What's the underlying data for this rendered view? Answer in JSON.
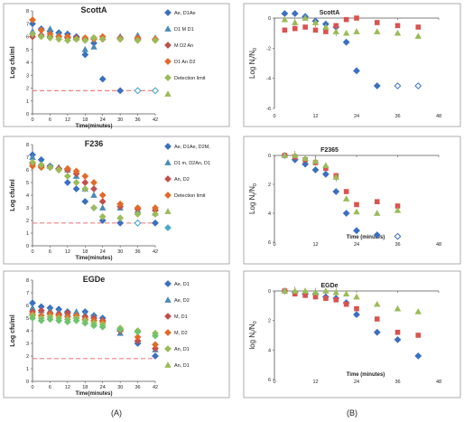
{
  "figure_labels": {
    "a": "(A)",
    "b": "(B)"
  },
  "colors": {
    "s1": "#3b6fbf",
    "s2": "#4a8ab7",
    "s3": "#c0504d",
    "s4": "#e06b2a",
    "s5": "#9bbb59",
    "s6": "#4bacc6",
    "detection": "#f08080"
  },
  "chart_data": [
    {
      "id": "a1",
      "type": "scatter",
      "title": "ScottA",
      "xlabel": "Time(minutes)",
      "ylabel": "Log cfu/ml",
      "xlim": [
        0,
        42
      ],
      "ylim": [
        0,
        8
      ],
      "xticks": [
        0,
        6,
        12,
        18,
        24,
        30,
        36,
        42
      ],
      "yticks": [
        0,
        1,
        2,
        3,
        4,
        5,
        6,
        7,
        8
      ],
      "legend": [
        "Ae, D1Ae",
        "D1 M D1",
        "M D2 An",
        "D1 An D2",
        "Detection limit",
        ""
      ],
      "series": [
        {
          "shape": "diamond",
          "color": "#3b6fbf",
          "x": [
            0,
            3,
            6,
            9,
            12,
            15,
            18,
            21,
            24,
            30,
            36,
            42
          ],
          "y": [
            7.0,
            6.6,
            6.4,
            6.3,
            6.2,
            6.0,
            4.6,
            5.5,
            2.7,
            1.8,
            1.8,
            1.8
          ]
        },
        {
          "shape": "triangle",
          "color": "#4a8ab7",
          "x": [
            0,
            3,
            6,
            9,
            12,
            15,
            18,
            21,
            24,
            30,
            36,
            42
          ],
          "y": [
            6.4,
            6.2,
            6.6,
            6.2,
            6.1,
            5.9,
            5.0,
            5.2,
            6.0,
            6.0,
            6.1,
            5.9
          ]
        },
        {
          "shape": "diamond",
          "color": "#c0504d",
          "x": [
            0,
            3,
            6,
            9,
            12,
            15,
            18,
            21,
            24,
            30,
            36,
            42
          ],
          "y": [
            6.0,
            6.1,
            6.0,
            6.0,
            5.9,
            5.9,
            5.8,
            5.9,
            5.8,
            5.9,
            5.8,
            5.8
          ]
        },
        {
          "shape": "diamond",
          "color": "#e06b2a",
          "x": [
            0,
            3,
            6,
            9,
            12,
            15,
            18,
            21,
            24,
            30,
            36,
            42
          ],
          "y": [
            7.3,
            6.5,
            6.2,
            6.0,
            6.0,
            5.8,
            5.9,
            5.8,
            6.0,
            5.8,
            5.9,
            5.8
          ]
        },
        {
          "shape": "diamond",
          "color": "#9bbb59",
          "x": [
            0,
            3,
            6,
            9,
            12,
            15,
            18,
            21,
            24,
            30,
            36,
            42
          ],
          "y": [
            6.2,
            6.0,
            5.9,
            5.8,
            5.7,
            5.8,
            5.7,
            5.9,
            5.8,
            5.8,
            5.7,
            5.7
          ]
        },
        {
          "shape": "diamond-open",
          "color": "#4bacc6",
          "x": [
            36,
            42
          ],
          "y": [
            1.8,
            1.8
          ]
        }
      ],
      "detection_limit": 1.8,
      "legend_marks": [
        "diamond",
        "triangle",
        "diamond",
        "diamond",
        "diamond",
        "triangle-green"
      ]
    },
    {
      "id": "a2",
      "type": "scatter",
      "title": "F236",
      "xlabel": "Time(minutes)",
      "ylabel": "Log cfu/ml",
      "xlim": [
        0,
        42
      ],
      "ylim": [
        0,
        8
      ],
      "xticks": [
        0,
        6,
        12,
        18,
        24,
        30,
        36,
        42
      ],
      "yticks": [
        0,
        1,
        2,
        3,
        4,
        5,
        6,
        7,
        8
      ],
      "legend": [
        "Ae, D1Ae, D2M,",
        "D1 m, D2An, D1",
        "An, D2",
        "Detection limit",
        "",
        ""
      ],
      "series": [
        {
          "shape": "diamond",
          "color": "#3b6fbf",
          "x": [
            0,
            3,
            6,
            9,
            12,
            15,
            18,
            21,
            24,
            30,
            36,
            42
          ],
          "y": [
            7.2,
            6.8,
            6.3,
            6.1,
            5.0,
            4.5,
            3.5,
            3.0,
            2.0,
            1.8,
            1.8,
            1.8
          ]
        },
        {
          "shape": "triangle",
          "color": "#4a8ab7",
          "x": [
            0,
            3,
            6,
            9,
            12,
            15,
            18,
            21,
            24,
            30,
            36,
            42
          ],
          "y": [
            7.0,
            6.5,
            6.3,
            6.2,
            6.0,
            5.5,
            4.5,
            4.0,
            3.0,
            3.0,
            2.8,
            2.6
          ]
        },
        {
          "shape": "diamond",
          "color": "#c0504d",
          "x": [
            0,
            3,
            6,
            9,
            12,
            15,
            18,
            21,
            24,
            30,
            36,
            42
          ],
          "y": [
            6.5,
            6.3,
            6.2,
            6.1,
            6.0,
            5.7,
            5.0,
            4.5,
            3.5,
            3.1,
            2.9,
            2.8
          ]
        },
        {
          "shape": "diamond",
          "color": "#e06b2a",
          "x": [
            0,
            3,
            6,
            9,
            12,
            15,
            18,
            21,
            24,
            30,
            36,
            42
          ],
          "y": [
            6.3,
            6.2,
            6.2,
            6.0,
            6.1,
            5.9,
            5.5,
            5.0,
            4.0,
            3.3,
            3.0,
            3.0
          ]
        },
        {
          "shape": "diamond",
          "color": "#9bbb59",
          "x": [
            0,
            3,
            6,
            9,
            12,
            15,
            18,
            21,
            24,
            30,
            36,
            42
          ],
          "y": [
            6.6,
            6.4,
            6.2,
            6.0,
            5.5,
            5.0,
            4.5,
            3.0,
            2.3,
            2.2,
            2.5,
            2.5
          ]
        },
        {
          "shape": "diamond-open",
          "color": "#4bacc6",
          "x": [
            36
          ],
          "y": [
            1.8
          ]
        }
      ],
      "detection_limit": 1.8,
      "legend_marks": [
        "diamond",
        "triangle",
        "diamond",
        "diamond",
        "triangle-green",
        "diamond"
      ]
    },
    {
      "id": "a3",
      "type": "scatter",
      "title": "EGDe",
      "xlabel": "Time(minutes)",
      "ylabel": "Log cfu/ml",
      "xlim": [
        0,
        42
      ],
      "ylim": [
        0,
        8
      ],
      "xticks": [
        0,
        6,
        12,
        18,
        24,
        30,
        36,
        42
      ],
      "yticks": [
        0,
        1,
        2,
        3,
        4,
        5,
        6,
        7,
        8
      ],
      "legend": [
        "Ae, D1",
        "Ae, D2",
        "M, D1",
        "M, D2",
        "An, D1",
        "An, D1"
      ],
      "series": [
        {
          "shape": "diamond",
          "color": "#3b6fbf",
          "x": [
            0,
            3,
            6,
            9,
            12,
            15,
            18,
            21,
            24,
            30,
            36,
            42
          ],
          "y": [
            6.2,
            5.9,
            5.8,
            5.7,
            5.5,
            5.0,
            5.5,
            5.2,
            5.0,
            4.0,
            3.0,
            2.0
          ]
        },
        {
          "shape": "triangle",
          "color": "#4a8ab7",
          "x": [
            0,
            3,
            6,
            9,
            12,
            15,
            18,
            21,
            24,
            30,
            36,
            42
          ],
          "y": [
            5.8,
            5.6,
            5.6,
            5.5,
            5.4,
            5.5,
            5.3,
            5.2,
            4.9,
            3.8,
            3.2,
            2.5
          ]
        },
        {
          "shape": "diamond",
          "color": "#c0504d",
          "x": [
            0,
            3,
            6,
            9,
            12,
            15,
            18,
            21,
            24,
            30,
            36,
            42
          ],
          "y": [
            5.5,
            5.6,
            5.4,
            5.3,
            5.4,
            5.2,
            5.1,
            5.0,
            4.8,
            4.0,
            3.2,
            2.6
          ]
        },
        {
          "shape": "diamond",
          "color": "#e06b2a",
          "x": [
            0,
            3,
            6,
            9,
            12,
            15,
            18,
            21,
            24,
            30,
            36,
            42
          ],
          "y": [
            5.3,
            5.2,
            5.3,
            5.2,
            5.1,
            5.2,
            4.9,
            4.8,
            4.7,
            4.1,
            3.5,
            2.9
          ]
        },
        {
          "shape": "diamond",
          "color": "#9bbb59",
          "x": [
            0,
            3,
            6,
            9,
            12,
            15,
            18,
            21,
            24,
            30,
            36,
            42
          ],
          "y": [
            5.2,
            5.0,
            5.1,
            5.0,
            4.9,
            5.0,
            4.8,
            4.6,
            4.5,
            4.2,
            4.0,
            3.8
          ]
        },
        {
          "shape": "diamond",
          "color": "#6ec36e",
          "x": [
            0,
            3,
            6,
            9,
            12,
            15,
            18,
            21,
            24,
            30,
            36,
            42
          ],
          "y": [
            5.0,
            4.8,
            4.9,
            4.8,
            4.7,
            4.8,
            4.6,
            4.4,
            4.3,
            4.1,
            3.9,
            3.6
          ]
        }
      ],
      "detection_limit": 1.8,
      "legend_marks": [
        "diamond",
        "triangle",
        "diamond",
        "diamond",
        "diamond",
        "triangle-green"
      ]
    },
    {
      "id": "b1",
      "type": "scatter",
      "title": "ScottA",
      "xlabel": "",
      "ylabel": "Log N_t/N_0",
      "xlim": [
        0,
        48
      ],
      "ylim": [
        -6,
        0
      ],
      "xticks": [
        0,
        12,
        24,
        36,
        48
      ],
      "xtick_labels": [
        "0",
        "12",
        "24",
        "36",
        "48"
      ],
      "yticks": [
        0,
        -2,
        -4,
        -6
      ],
      "ytick_labels": [
        "0",
        "-2",
        "-4",
        "-6"
      ],
      "series": [
        {
          "shape": "diamond",
          "color": "#3b6fbf",
          "x": [
            3,
            6,
            9,
            12,
            15,
            18,
            21,
            24,
            30,
            36,
            42
          ],
          "y": [
            0.3,
            0.3,
            0.1,
            -0.2,
            -0.4,
            -0.6,
            -1.6,
            -3.5,
            -4.5,
            -4.5,
            -4.5
          ],
          "open_from": 9
        },
        {
          "shape": "square",
          "color": "#d9534f",
          "x": [
            3,
            6,
            9,
            12,
            15,
            18,
            21,
            24,
            30,
            36,
            42
          ],
          "y": [
            -0.8,
            -0.7,
            -0.6,
            -0.8,
            -0.9,
            -0.5,
            -0.1,
            0.0,
            -0.3,
            -0.5,
            -0.6
          ]
        },
        {
          "shape": "triangle",
          "color": "#9bbb59",
          "x": [
            3,
            6,
            9,
            12,
            15,
            18,
            21,
            24,
            30,
            36,
            42
          ],
          "y": [
            -0.1,
            -0.3,
            0.0,
            -0.3,
            -0.6,
            -0.9,
            -1.0,
            -0.9,
            -0.9,
            -1.0,
            -1.2
          ]
        }
      ]
    },
    {
      "id": "b2",
      "type": "scatter",
      "title": "F2365",
      "xlabel": "Time (minutes)",
      "ylabel": "Log N_t/N_0",
      "xlim": [
        0,
        48
      ],
      "ylim": [
        -6,
        0
      ],
      "xticks": [
        0,
        12,
        24,
        36,
        48
      ],
      "xtick_labels": [
        "0",
        "12",
        "24",
        "36",
        "48"
      ],
      "yticks": [
        0,
        -2,
        -4,
        -6
      ],
      "ytick_labels": [
        "0",
        "2",
        "4",
        "6"
      ],
      "series": [
        {
          "shape": "diamond",
          "color": "#3b6fbf",
          "x": [
            3,
            6,
            9,
            12,
            15,
            18,
            21,
            24,
            30,
            36
          ],
          "y": [
            0,
            -0.3,
            -0.6,
            -1.0,
            -1.3,
            -2.5,
            -4.0,
            -5.2,
            -5.5,
            -5.6
          ],
          "open_from": 9
        },
        {
          "shape": "square",
          "color": "#d9534f",
          "x": [
            3,
            6,
            9,
            12,
            15,
            18,
            21,
            24,
            30,
            36
          ],
          "y": [
            0,
            -0.1,
            -0.3,
            -0.5,
            -0.9,
            -1.4,
            -2.5,
            -3.4,
            -3.2,
            -3.5
          ]
        },
        {
          "shape": "triangle",
          "color": "#9bbb59",
          "x": [
            3,
            6,
            9,
            12,
            15,
            18,
            21,
            24,
            30,
            36
          ],
          "y": [
            0,
            0,
            -0.2,
            -0.4,
            -0.7,
            -1.5,
            -3.0,
            -3.9,
            -4.0,
            -3.8
          ]
        }
      ]
    },
    {
      "id": "b3",
      "type": "scatter",
      "title": "EGDe",
      "xlabel": "Time (minutes)",
      "ylabel": "log N_t/N_0",
      "xlim": [
        0,
        48
      ],
      "ylim": [
        -6,
        0
      ],
      "xticks": [
        0,
        12,
        24,
        36,
        48
      ],
      "xtick_labels": [
        "0",
        "12",
        "24",
        "36",
        "48"
      ],
      "yticks": [
        0,
        -2,
        -4,
        -6
      ],
      "ytick_labels": [
        "0",
        "2",
        "4",
        "6"
      ],
      "series": [
        {
          "shape": "diamond",
          "color": "#3b6fbf",
          "x": [
            3,
            6,
            9,
            12,
            15,
            18,
            21,
            24,
            30,
            36,
            42
          ],
          "y": [
            0,
            -0.1,
            -0.2,
            -0.2,
            -0.4,
            -0.5,
            -0.8,
            -1.6,
            -2.8,
            -3.3,
            -4.4
          ]
        },
        {
          "shape": "square",
          "color": "#d9534f",
          "x": [
            3,
            6,
            9,
            12,
            15,
            18,
            21,
            24,
            30,
            36,
            42
          ],
          "y": [
            0,
            -0.2,
            -0.3,
            -0.4,
            -0.5,
            -0.6,
            -0.9,
            -1.2,
            -1.9,
            -2.8,
            -3.0
          ]
        },
        {
          "shape": "triangle",
          "color": "#9bbb59",
          "x": [
            3,
            6,
            9,
            12,
            15,
            18,
            21,
            24,
            30,
            36,
            42
          ],
          "y": [
            0,
            0,
            0,
            -0.1,
            0,
            -0.1,
            -0.2,
            -0.4,
            -0.9,
            -1.2,
            -1.4
          ]
        }
      ]
    }
  ]
}
